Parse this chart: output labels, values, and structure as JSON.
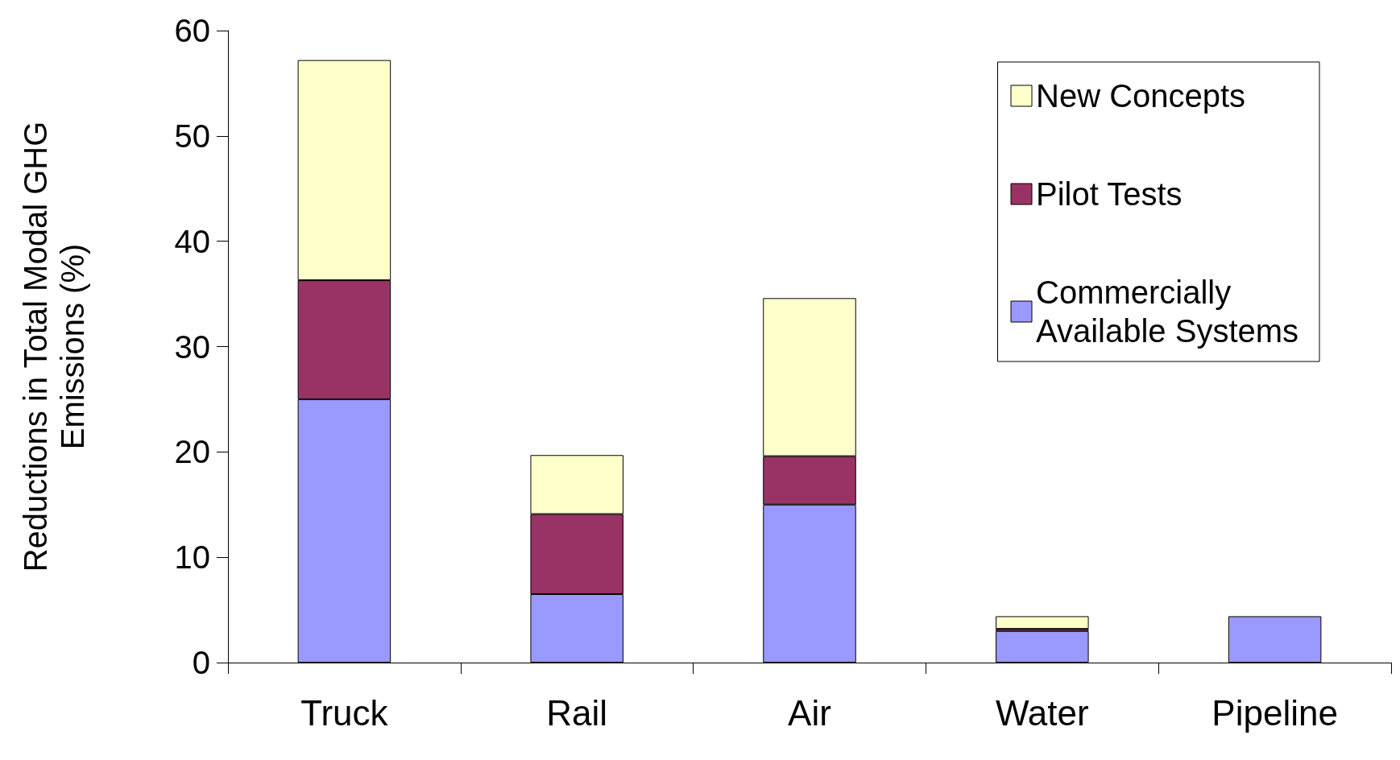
{
  "chart_data": {
    "type": "bar",
    "ylabel": "Reductions in Total Modal GHG Emissions (%)",
    "categories": [
      "Truck",
      "Rail",
      "Air",
      "Water",
      "Pipeline"
    ],
    "stacked": true,
    "ylim": [
      0,
      60
    ],
    "yticks": [
      0,
      10,
      20,
      30,
      40,
      50,
      60
    ],
    "grid": false,
    "legend": "top right",
    "series": [
      {
        "name": "Commercially Available Systems",
        "color": "#9999ff",
        "values": [
          25,
          6.5,
          15,
          3,
          4.4
        ]
      },
      {
        "name": "Pilot Tests",
        "color": "#993366",
        "values": [
          11.3,
          7.6,
          4.6,
          0.2,
          0
        ]
      },
      {
        "name": "New Concepts",
        "color": "#ffffcc",
        "values": [
          20.9,
          5.6,
          15,
          1.2,
          0
        ]
      }
    ]
  }
}
